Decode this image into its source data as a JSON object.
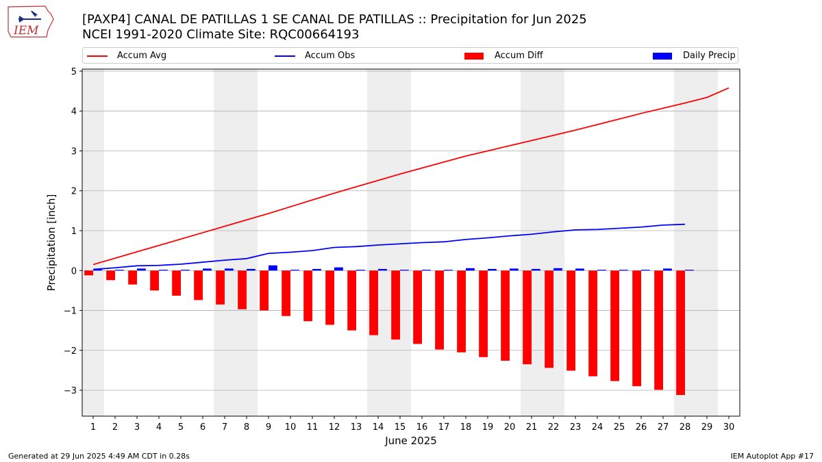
{
  "header": {
    "title_line1": "[PAXP4] CANAL DE PATILLAS 1 SE CANAL DE PATILLAS :: Precipitation for Jun 2025",
    "title_line2": "NCEI 1991-2020 Climate Site: RQC00664193",
    "logo_text": "IEM"
  },
  "footer": {
    "left": "Generated at 29 Jun 2025 4:49 AM CDT in 0.28s",
    "right": "IEM Autoplot App #17"
  },
  "colors": {
    "accum_avg": "#ff0000",
    "accum_obs": "#0000ff",
    "accum_diff": "#ff0000",
    "daily_precip": "#0000ff",
    "weekend_shade": "#eeeeee",
    "grid": "#b0b0b0"
  },
  "legend": [
    {
      "label": "Accum Avg",
      "kind": "line",
      "color": "#ff0000"
    },
    {
      "label": "Accum Obs",
      "kind": "line",
      "color": "#0000ff"
    },
    {
      "label": "Accum Diff",
      "kind": "patch",
      "color": "#ff0000"
    },
    {
      "label": "Daily Precip",
      "kind": "patch",
      "color": "#0000ff"
    }
  ],
  "chart_data": {
    "type": "bar",
    "title": "[PAXP4] CANAL DE PATILLAS 1 SE CANAL DE PATILLAS :: Precipitation for Jun 2025",
    "subtitle": "NCEI 1991-2020 Climate Site: RQC00664193",
    "xlabel": "June 2025",
    "ylabel": "Precipitation [inch]",
    "xlim": [
      0.5,
      30.5
    ],
    "ylim": [
      -3.65,
      5.05
    ],
    "yticks": [
      -3,
      -2,
      -1,
      0,
      1,
      2,
      3,
      4,
      5
    ],
    "ytick_labels": [
      "−3",
      "−2",
      "−1",
      "0",
      "1",
      "2",
      "3",
      "4",
      "5"
    ],
    "categories": [
      "1",
      "2",
      "3",
      "4",
      "5",
      "6",
      "7",
      "8",
      "9",
      "10",
      "11",
      "12",
      "13",
      "14",
      "15",
      "16",
      "17",
      "18",
      "19",
      "20",
      "21",
      "22",
      "23",
      "24",
      "25",
      "26",
      "27",
      "28",
      "29",
      "30"
    ],
    "grid": true,
    "legend_position": "top",
    "weekend_shading": [
      [
        0.5,
        1.5
      ],
      [
        6.5,
        8.5
      ],
      [
        13.5,
        15.5
      ],
      [
        20.5,
        22.5
      ],
      [
        27.5,
        29.5
      ]
    ],
    "series": [
      {
        "name": "Accum Avg",
        "type": "line",
        "color": "#ff0000",
        "x": [
          1,
          2,
          3,
          4,
          5,
          6,
          7,
          8,
          9,
          10,
          11,
          12,
          13,
          14,
          15,
          16,
          17,
          18,
          19,
          20,
          21,
          22,
          23,
          24,
          25,
          26,
          27,
          28,
          29,
          30
        ],
        "values": [
          0.15,
          0.31,
          0.47,
          0.63,
          0.79,
          0.95,
          1.11,
          1.27,
          1.43,
          1.6,
          1.77,
          1.94,
          2.1,
          2.26,
          2.42,
          2.57,
          2.72,
          2.87,
          3.0,
          3.13,
          3.26,
          3.39,
          3.52,
          3.66,
          3.8,
          3.94,
          4.07,
          4.2,
          4.34,
          4.58
        ]
      },
      {
        "name": "Accum Obs",
        "type": "line",
        "color": "#0000ff",
        "x": [
          1,
          2,
          3,
          4,
          5,
          6,
          7,
          8,
          9,
          10,
          11,
          12,
          13,
          14,
          15,
          16,
          17,
          18,
          19,
          20,
          21,
          22,
          23,
          24,
          25,
          26,
          27,
          28
        ],
        "values": [
          0.03,
          0.07,
          0.12,
          0.13,
          0.16,
          0.21,
          0.26,
          0.3,
          0.43,
          0.46,
          0.5,
          0.58,
          0.6,
          0.64,
          0.67,
          0.7,
          0.72,
          0.78,
          0.82,
          0.87,
          0.91,
          0.97,
          1.02,
          1.03,
          1.06,
          1.09,
          1.14,
          1.16
        ]
      },
      {
        "name": "Accum Diff",
        "type": "bar",
        "color": "#ff0000",
        "x": [
          1,
          2,
          3,
          4,
          5,
          6,
          7,
          8,
          9,
          10,
          11,
          12,
          13,
          14,
          15,
          16,
          17,
          18,
          19,
          20,
          21,
          22,
          23,
          24,
          25,
          26,
          27,
          28
        ],
        "values": [
          -0.12,
          -0.24,
          -0.35,
          -0.5,
          -0.63,
          -0.74,
          -0.85,
          -0.97,
          -1.0,
          -1.14,
          -1.27,
          -1.36,
          -1.5,
          -1.62,
          -1.73,
          -1.84,
          -1.98,
          -2.05,
          -2.17,
          -2.26,
          -2.35,
          -2.44,
          -2.51,
          -2.65,
          -2.77,
          -2.9,
          -2.99,
          -3.12
        ]
      },
      {
        "name": "Daily Precip",
        "type": "bar",
        "color": "#0000ff",
        "x": [
          1,
          2,
          3,
          4,
          5,
          6,
          7,
          8,
          9,
          10,
          11,
          12,
          13,
          14,
          15,
          16,
          17,
          18,
          19,
          20,
          21,
          22,
          23,
          24,
          25,
          26,
          27,
          28
        ],
        "values": [
          0.04,
          0.02,
          0.05,
          0.02,
          0.02,
          0.05,
          0.05,
          0.04,
          0.13,
          0.02,
          0.04,
          0.08,
          0.02,
          0.04,
          0.02,
          0.02,
          0.02,
          0.06,
          0.04,
          0.05,
          0.04,
          0.06,
          0.05,
          0.02,
          0.02,
          0.02,
          0.05,
          0.02
        ]
      }
    ]
  }
}
